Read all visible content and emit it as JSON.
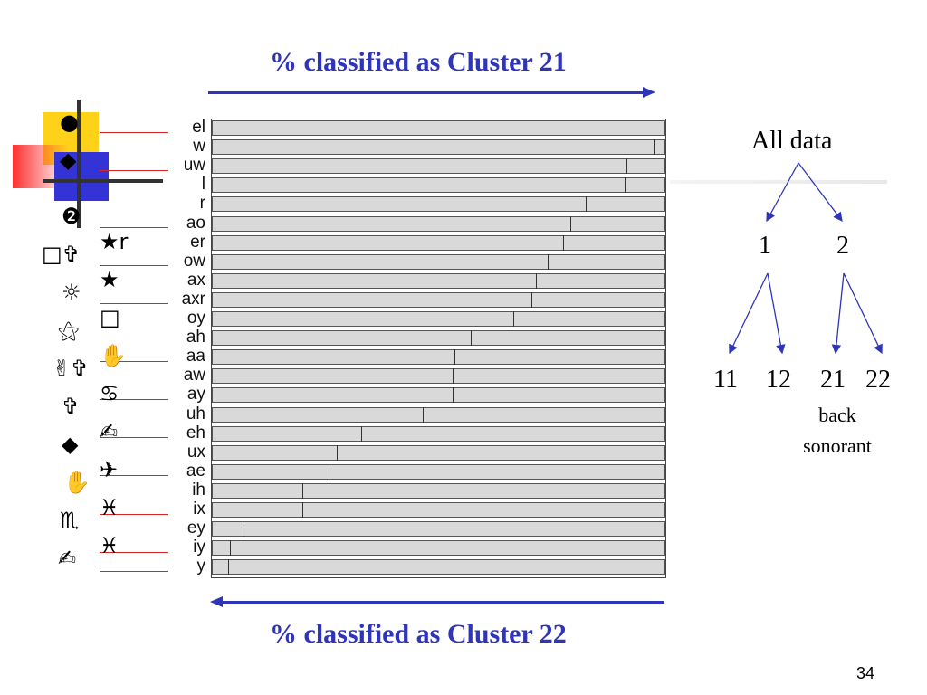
{
  "title_top": "% classified as Cluster 21",
  "title_bottom": "% classified as Cluster 22",
  "page_number": "34",
  "colors": {
    "accent": "#2f35b8",
    "bar_fill": "#d9d9d9",
    "bar_border": "#555555",
    "red_lines": "#dd2222"
  },
  "chart_data": {
    "type": "bar",
    "orientation": "horizontal",
    "stacked_percent": true,
    "categories": [
      "el",
      "w",
      "uw",
      "l",
      "r",
      "ao",
      "er",
      "ow",
      "ax",
      "axr",
      "oy",
      "ah",
      "aa",
      "aw",
      "ay",
      "uh",
      "eh",
      "ux",
      "ae",
      "ih",
      "ix",
      "ey",
      "iy",
      "y"
    ],
    "series": [
      {
        "name": "% classified as Cluster 21",
        "values": [
          100,
          97.5,
          91.5,
          91,
          82.5,
          79,
          77.5,
          74,
          71.5,
          70.5,
          66.5,
          57,
          53.5,
          53,
          53,
          46.5,
          33,
          27.5,
          26,
          20,
          20,
          7,
          4,
          3.5
        ]
      },
      {
        "name": "% classified as Cluster 22",
        "values": [
          0,
          2.5,
          8.5,
          9,
          17.5,
          21,
          22.5,
          26,
          28.5,
          29.5,
          33.5,
          43,
          46.5,
          47,
          47,
          53.5,
          67,
          72.5,
          74,
          80,
          80,
          93,
          96,
          96.5
        ]
      }
    ],
    "xlim": [
      0,
      100
    ]
  },
  "left_symbols": {
    "col1": [
      "●",
      "◆",
      "❷",
      "□✞",
      "☼",
      "⚝",
      "✌✞",
      "✞",
      "◆",
      "✋",
      "♏",
      "✍"
    ],
    "col2": [
      "★r",
      "★",
      "□",
      "✋",
      "♋",
      "✍",
      "✈",
      "♓",
      "♓"
    ]
  },
  "tree": {
    "root": "All data",
    "level1": [
      "1",
      "2"
    ],
    "level2": [
      "11",
      "12",
      "21",
      "22"
    ],
    "note_line1": "back",
    "note_line2": "sonorant"
  }
}
